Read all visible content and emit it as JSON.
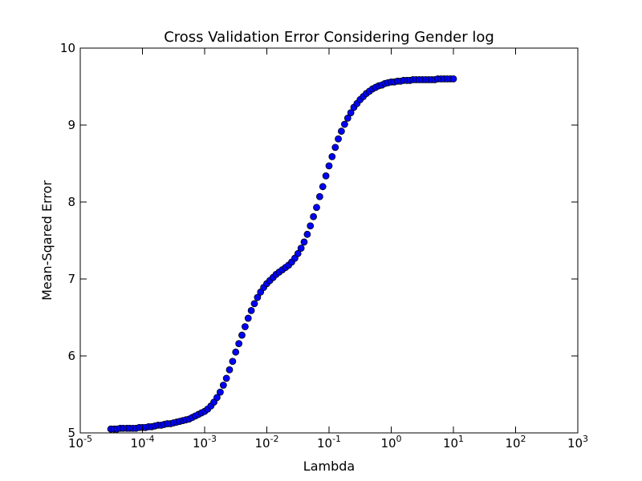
{
  "chart_data": {
    "type": "scatter",
    "title": "Cross Validation Error Considering Gender log",
    "xlabel": "Lambda",
    "ylabel": "Mean-Sqared Error",
    "xscale": "log",
    "xlim": [
      1e-05,
      1000
    ],
    "ylim": [
      5,
      10
    ],
    "x_ticks": [
      {
        "value": 1e-05,
        "base": "10",
        "exp": "-5"
      },
      {
        "value": 0.0001,
        "base": "10",
        "exp": "-4"
      },
      {
        "value": 0.001,
        "base": "10",
        "exp": "-3"
      },
      {
        "value": 0.01,
        "base": "10",
        "exp": "-2"
      },
      {
        "value": 0.1,
        "base": "10",
        "exp": "-1"
      },
      {
        "value": 1,
        "base": "10",
        "exp": "0"
      },
      {
        "value": 10,
        "base": "10",
        "exp": "1"
      },
      {
        "value": 100,
        "base": "10",
        "exp": "2"
      },
      {
        "value": 1000,
        "base": "10",
        "exp": "3"
      }
    ],
    "y_ticks": [
      "5",
      "6",
      "7",
      "8",
      "9",
      "10"
    ],
    "grid": false,
    "marker_color": "#0000ff",
    "marker_edge_color": "#000000",
    "points": [
      [
        3.1e-05,
        5.05
      ],
      [
        3.5e-05,
        5.05
      ],
      [
        3.9e-05,
        5.05
      ],
      [
        4.4e-05,
        5.06
      ],
      [
        4.9e-05,
        5.06
      ],
      [
        5.6e-05,
        5.06
      ],
      [
        6.2e-05,
        5.06
      ],
      [
        7e-05,
        5.06
      ],
      [
        7.9e-05,
        5.06
      ],
      [
        8.9e-05,
        5.07
      ],
      [
        0.0001,
        5.07
      ],
      [
        0.000112,
        5.07
      ],
      [
        0.000126,
        5.08
      ],
      [
        0.000141,
        5.08
      ],
      [
        0.000158,
        5.09
      ],
      [
        0.000178,
        5.1
      ],
      [
        0.0002,
        5.1
      ],
      [
        0.000224,
        5.11
      ],
      [
        0.000251,
        5.12
      ],
      [
        0.000282,
        5.12
      ],
      [
        0.000316,
        5.13
      ],
      [
        0.000355,
        5.14
      ],
      [
        0.000398,
        5.15
      ],
      [
        0.000447,
        5.16
      ],
      [
        0.000501,
        5.17
      ],
      [
        0.000562,
        5.18
      ],
      [
        0.000631,
        5.2
      ],
      [
        0.000708,
        5.22
      ],
      [
        0.000794,
        5.24
      ],
      [
        0.000891,
        5.26
      ],
      [
        0.001,
        5.28
      ],
      [
        0.00112,
        5.31
      ],
      [
        0.00126,
        5.35
      ],
      [
        0.00141,
        5.4
      ],
      [
        0.00158,
        5.46
      ],
      [
        0.00178,
        5.53
      ],
      [
        0.002,
        5.62
      ],
      [
        0.00224,
        5.71
      ],
      [
        0.00251,
        5.82
      ],
      [
        0.00282,
        5.93
      ],
      [
        0.00316,
        6.05
      ],
      [
        0.00355,
        6.16
      ],
      [
        0.00398,
        6.27
      ],
      [
        0.00447,
        6.38
      ],
      [
        0.00501,
        6.49
      ],
      [
        0.00562,
        6.59
      ],
      [
        0.00631,
        6.68
      ],
      [
        0.00708,
        6.76
      ],
      [
        0.00794,
        6.83
      ],
      [
        0.00891,
        6.89
      ],
      [
        0.01,
        6.94
      ],
      [
        0.0112,
        6.98
      ],
      [
        0.0126,
        7.02
      ],
      [
        0.0141,
        7.06
      ],
      [
        0.0158,
        7.09
      ],
      [
        0.0178,
        7.12
      ],
      [
        0.02,
        7.15
      ],
      [
        0.0224,
        7.18
      ],
      [
        0.0251,
        7.22
      ],
      [
        0.0282,
        7.27
      ],
      [
        0.0316,
        7.33
      ],
      [
        0.0355,
        7.4
      ],
      [
        0.0398,
        7.48
      ],
      [
        0.0447,
        7.58
      ],
      [
        0.0501,
        7.69
      ],
      [
        0.0562,
        7.81
      ],
      [
        0.0631,
        7.93
      ],
      [
        0.0708,
        8.07
      ],
      [
        0.0794,
        8.2
      ],
      [
        0.0891,
        8.34
      ],
      [
        0.1,
        8.47
      ],
      [
        0.112,
        8.59
      ],
      [
        0.126,
        8.71
      ],
      [
        0.141,
        8.82
      ],
      [
        0.158,
        8.92
      ],
      [
        0.178,
        9.01
      ],
      [
        0.2,
        9.09
      ],
      [
        0.224,
        9.16
      ],
      [
        0.251,
        9.23
      ],
      [
        0.282,
        9.28
      ],
      [
        0.316,
        9.33
      ],
      [
        0.355,
        9.37
      ],
      [
        0.398,
        9.41
      ],
      [
        0.447,
        9.44
      ],
      [
        0.501,
        9.47
      ],
      [
        0.562,
        9.49
      ],
      [
        0.631,
        9.51
      ],
      [
        0.708,
        9.52
      ],
      [
        0.794,
        9.54
      ],
      [
        0.891,
        9.55
      ],
      [
        1,
        9.56
      ],
      [
        1.12,
        9.56
      ],
      [
        1.26,
        9.57
      ],
      [
        1.41,
        9.57
      ],
      [
        1.58,
        9.58
      ],
      [
        1.78,
        9.58
      ],
      [
        2,
        9.58
      ],
      [
        2.24,
        9.59
      ],
      [
        2.51,
        9.59
      ],
      [
        2.82,
        9.59
      ],
      [
        3.16,
        9.59
      ],
      [
        3.55,
        9.59
      ],
      [
        3.98,
        9.59
      ],
      [
        4.47,
        9.59
      ],
      [
        5.01,
        9.59
      ],
      [
        5.62,
        9.6
      ],
      [
        6.31,
        9.6
      ],
      [
        7.08,
        9.6
      ],
      [
        7.94,
        9.6
      ],
      [
        8.91,
        9.6
      ],
      [
        10,
        9.6
      ]
    ]
  }
}
